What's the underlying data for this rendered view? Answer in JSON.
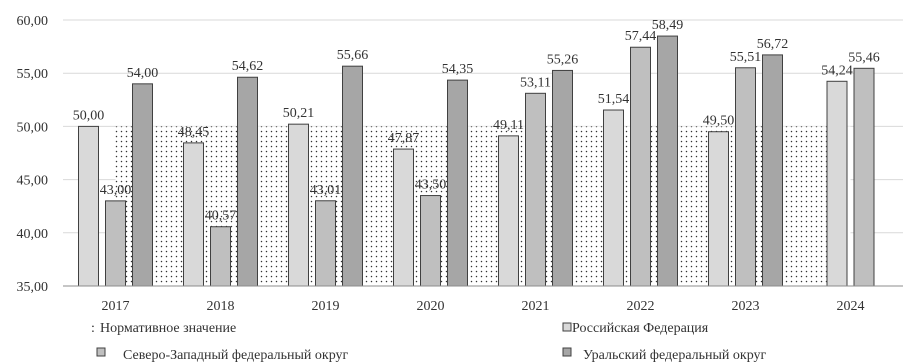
{
  "chart_data": {
    "type": "bar",
    "categories": [
      "2017",
      "2018",
      "2019",
      "2020",
      "2021",
      "2022",
      "2023",
      "2024"
    ],
    "ylim": [
      35,
      60
    ],
    "yticks": [
      "35,00",
      "40,00",
      "45,00",
      "50,00",
      "55,00",
      "60,00"
    ],
    "grid": true,
    "normative": {
      "name": "Нормативное значение",
      "value": 50,
      "x_from": "2017",
      "x_to": "2024"
    },
    "series": [
      {
        "name": "Российская Федерация",
        "color": "#d9d9d9",
        "values": [
          50.0,
          48.45,
          50.21,
          47.87,
          49.11,
          51.54,
          49.5,
          54.24
        ],
        "labels": [
          "50,00",
          "48,45",
          "50,21",
          "47,87",
          "49,11",
          "51,54",
          "49,50",
          "54,24"
        ]
      },
      {
        "name": "Северо-Западный федеральный округ",
        "color": "#bfbfbf",
        "values": [
          43.0,
          40.57,
          43.01,
          43.5,
          53.11,
          57.44,
          55.51,
          55.46
        ],
        "labels": [
          "43,00",
          "40,57",
          "43,01",
          "43,50",
          "53,11",
          "57,44",
          "55,51",
          "55,46"
        ]
      },
      {
        "name": "Уральский федеральный округ",
        "color": "#a6a6a6",
        "values": [
          54.0,
          54.62,
          55.66,
          54.35,
          55.26,
          58.49,
          56.72,
          null
        ],
        "labels": [
          "54,00",
          "54,62",
          "55,66",
          "54,35",
          "55,26",
          "58,49",
          "56,72",
          ""
        ]
      }
    ],
    "legend": {
      "items": [
        {
          "symbol": ":",
          "label": "Нормативное значение"
        },
        {
          "symbol": "box",
          "label": "Российская Федерация"
        },
        {
          "symbol": "box",
          "label": "Северо-Западный федеральный округ"
        },
        {
          "symbol": "box",
          "label": "Уральский федеральный округ"
        }
      ],
      "placement": "bottom"
    }
  }
}
